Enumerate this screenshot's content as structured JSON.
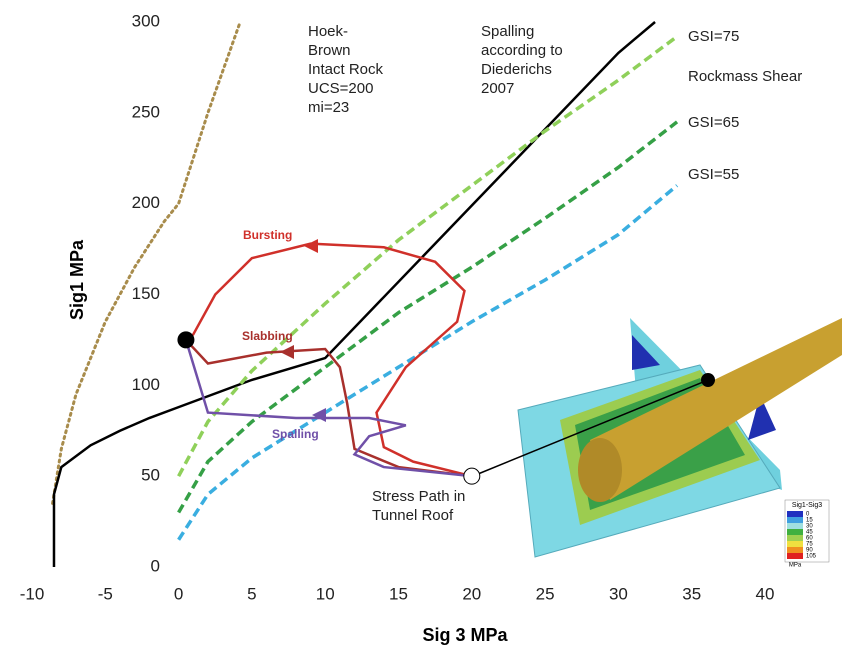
{
  "chart_data": {
    "type": "line",
    "x_label": "Sig 3  MPa",
    "y_label": "Sig1 MPa",
    "xlim": [
      -10,
      40
    ],
    "xticks": [
      -10,
      -5,
      0,
      5,
      10,
      15,
      20,
      25,
      30,
      35,
      40
    ],
    "ylim": [
      0,
      300
    ],
    "yticks": [
      0,
      50,
      100,
      150,
      200,
      250,
      300
    ],
    "grid": false,
    "series": [
      {
        "color": "#a88c4c",
        "dash": "dotted",
        "x": [
          -8.6,
          -8,
          -7,
          -5,
          -3,
          -1,
          0,
          2,
          4.2
        ],
        "values": [
          35,
          65,
          95,
          135,
          165,
          190,
          200,
          250,
          300
        ]
      },
      {
        "color": "#000000",
        "dash": "solid",
        "x": [
          -8.5,
          -8.5,
          -8,
          -6,
          -4,
          -2,
          0,
          5,
          10,
          20,
          30,
          32.5
        ],
        "values": [
          0,
          40,
          55,
          67,
          75,
          82,
          88,
          103,
          115,
          199,
          283,
          300
        ]
      },
      {
        "name": "GSI=75",
        "color": "#8fd05a",
        "dash": "dashed",
        "x": [
          0,
          2,
          5,
          10,
          15,
          20,
          25,
          30,
          34
        ],
        "values": [
          50,
          80,
          108,
          145,
          180,
          210,
          240,
          268,
          292
        ]
      },
      {
        "name": "GSI=65",
        "color": "#35a046",
        "dash": "dashed",
        "x": [
          0,
          2,
          5,
          10,
          15,
          20,
          25,
          30,
          34
        ],
        "values": [
          30,
          58,
          80,
          110,
          140,
          165,
          192,
          220,
          245
        ]
      },
      {
        "name": "GSI=55",
        "color": "#3aaee0",
        "dash": "dashed",
        "x": [
          0,
          2,
          5,
          10,
          15,
          20,
          25,
          30,
          34
        ],
        "values": [
          15,
          40,
          60,
          85,
          110,
          135,
          158,
          183,
          210
        ]
      },
      {
        "name": "Bursting",
        "color": "#d0302a",
        "dash": "solid",
        "x": [
          20,
          16,
          14,
          13.5,
          15.5,
          19,
          19.5,
          17.5,
          14,
          9,
          5,
          2.5,
          1,
          0.5
        ],
        "values": [
          50,
          58,
          66,
          85,
          110,
          135,
          152,
          168,
          176,
          178,
          170,
          150,
          128,
          125
        ]
      },
      {
        "name": "Slabbing",
        "color": "#a8302c",
        "dash": "solid",
        "x": [
          20,
          15,
          12,
          11.5,
          11,
          10,
          6,
          2,
          0.5
        ],
        "values": [
          50,
          55,
          65,
          90,
          110,
          120,
          118,
          112,
          125
        ]
      },
      {
        "name": "Spalling",
        "color": "#7050a8",
        "dash": "solid",
        "x": [
          20,
          14,
          12,
          13,
          15.5,
          13,
          8,
          2,
          0.5
        ],
        "values": [
          50,
          55,
          62,
          72,
          78,
          82,
          82,
          85,
          125
        ]
      }
    ],
    "markers": [
      {
        "x": 0.5,
        "y": 125,
        "color": "#000000"
      },
      {
        "x": 20,
        "y": 50,
        "color": "#ffffff"
      }
    ],
    "annotations": [
      {
        "lines": [
          "Hoek-",
          "Brown",
          "Intact Rock",
          "UCS=200",
          "mi=23"
        ]
      },
      {
        "lines": [
          "Spalling",
          "according to",
          "Diederichs",
          "2007"
        ]
      },
      {
        "lines": [
          "Rockmass Shear"
        ]
      },
      {
        "lines": [
          "Stress Path in",
          "Tunnel Roof"
        ]
      }
    ],
    "inset": {
      "title": "Sig1-Sig3",
      "unit": "MPa",
      "levels": [
        "0",
        "15",
        "30",
        "45",
        "60",
        "75",
        "90",
        "105"
      ],
      "colors": [
        "#2030c0",
        "#40a0e0",
        "#a0e0e0",
        "#40b040",
        "#a0d050",
        "#f0e040",
        "#f09020",
        "#e02020"
      ]
    }
  }
}
